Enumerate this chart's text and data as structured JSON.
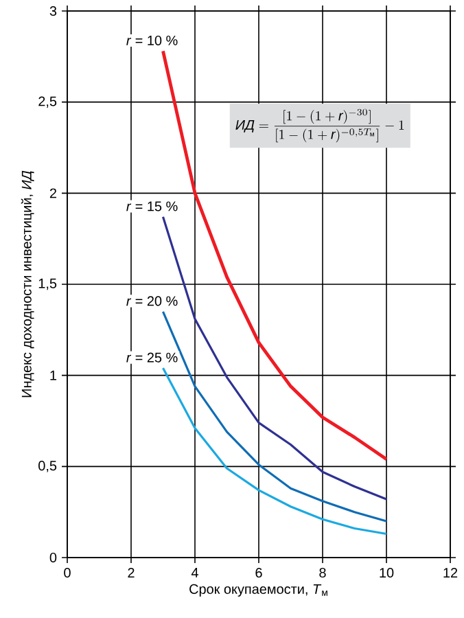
{
  "chart_data": {
    "type": "line",
    "xlabel": "Срок окупаемости, *T*$_{м}$",
    "ylabel": "Индекс доходности инвестиций, *ИД*",
    "xlim": [
      0,
      12
    ],
    "xticks": [
      0,
      2,
      4,
      6,
      8,
      10,
      12
    ],
    "ylim": [
      0,
      3
    ],
    "yticks": [
      0,
      {
        "value": 0.5,
        "label": "0,5"
      },
      1,
      {
        "value": 1.5,
        "label": "1,5"
      },
      2,
      {
        "value": 2.5,
        "label": "2,5"
      },
      3
    ],
    "grid": true,
    "x": [
      3,
      4,
      5,
      6,
      7,
      8,
      9,
      10
    ],
    "series": [
      {
        "name": "*r* = 10 %",
        "color": "#ee1c24",
        "values": [
          2.78,
          2.0,
          1.54,
          1.18,
          0.94,
          0.77,
          0.66,
          0.54
        ]
      },
      {
        "name": "*r* = 15 %",
        "color": "#2e3192",
        "values": [
          1.87,
          1.31,
          0.99,
          0.74,
          0.62,
          0.47,
          0.39,
          0.32
        ]
      },
      {
        "name": "*r* = 20 %",
        "color": "#0f6db5",
        "values": [
          1.35,
          0.94,
          0.69,
          0.51,
          0.38,
          0.31,
          0.25,
          0.2
        ]
      },
      {
        "name": "*r* = 25 %",
        "color": "#1ba9e1",
        "values": [
          1.04,
          0.71,
          0.49,
          0.37,
          0.28,
          0.21,
          0.16,
          0.13
        ]
      }
    ],
    "annotations": [
      "\\textit{ИД}=\\frac{[1-(1+\\textit{r})^{-30}]}{[1-(1+\\textit{r})^{-0{,}5T_{\\text{м}}}]}-1"
    ]
  }
}
